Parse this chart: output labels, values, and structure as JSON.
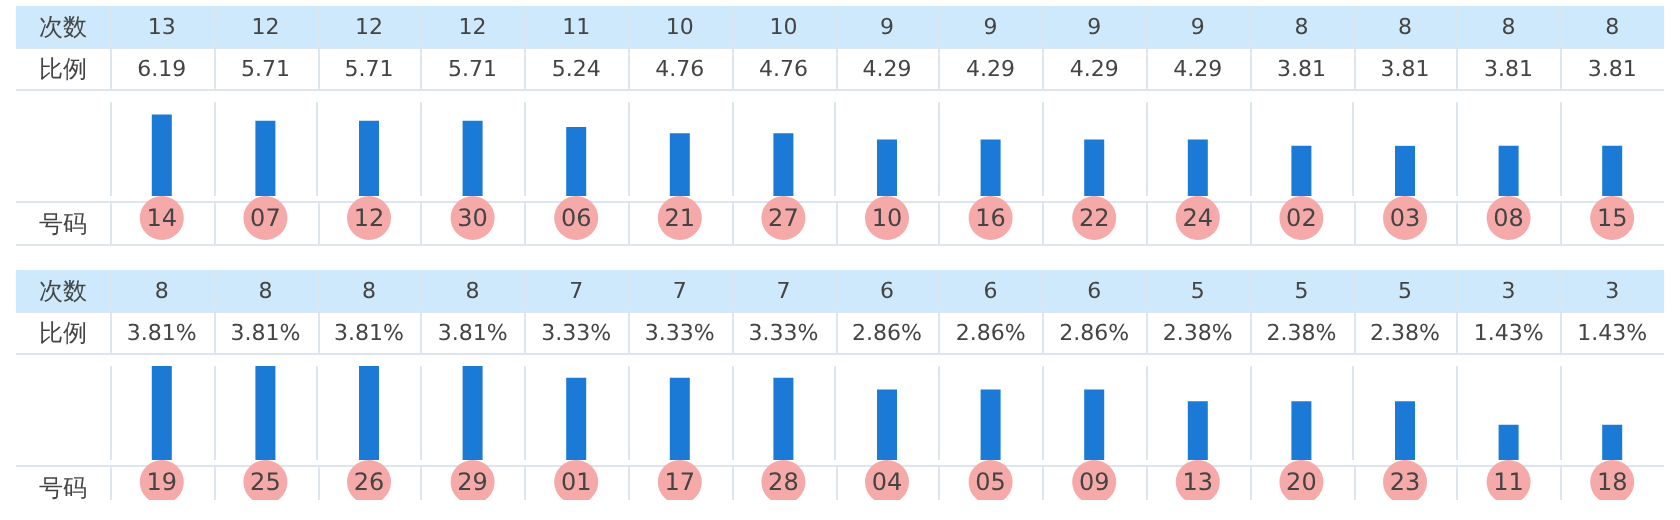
{
  "chart_data": [
    {
      "type": "bar",
      "categories": [
        "14",
        "07",
        "12",
        "30",
        "06",
        "21",
        "27",
        "10",
        "16",
        "22",
        "24",
        "02",
        "03",
        "08",
        "15"
      ],
      "values": [
        13,
        12,
        12,
        12,
        11,
        10,
        10,
        9,
        9,
        9,
        9,
        8,
        8,
        8,
        8
      ],
      "color": "#1a7ad6",
      "data_labels": true,
      "grid": "x",
      "tick_labels": "x",
      "annotations": [
        "次数",
        "比例",
        "号码",
        "6.19",
        "5.71",
        "5.71",
        "5.71",
        "5.24",
        "4.76",
        "4.76",
        "4.29",
        "4.29",
        "4.29",
        "4.29",
        "3.81",
        "3.81",
        "3.81",
        "3.81"
      ]
    },
    {
      "type": "bar",
      "categories": [
        "19",
        "25",
        "26",
        "29",
        "01",
        "17",
        "28",
        "04",
        "05",
        "09",
        "13",
        "20",
        "23",
        "11",
        "18"
      ],
      "values": [
        8,
        8,
        8,
        8,
        7,
        7,
        7,
        6,
        6,
        6,
        5,
        5,
        5,
        3,
        3
      ],
      "color": "#1a7ad6",
      "data_labels": true,
      "grid": "x",
      "tick_labels": "x",
      "annotations": [
        "次数",
        "比例",
        "号码",
        "3.81%",
        "3.81%",
        "3.81%",
        "3.81%",
        "3.33%",
        "3.33%",
        "3.33%",
        "2.86%",
        "2.86%",
        "2.86%",
        "2.38%",
        "2.38%",
        "2.38%",
        "1.43%",
        "1.43%"
      ]
    }
  ]
}
